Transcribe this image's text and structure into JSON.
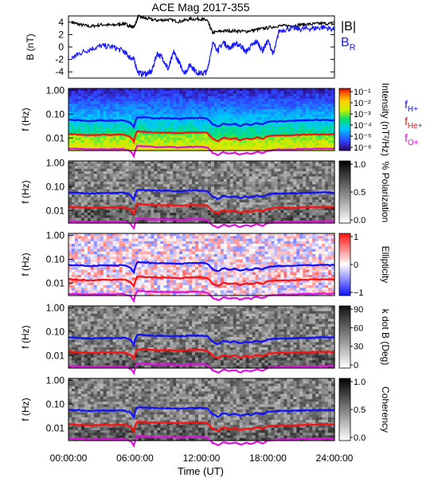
{
  "figure": {
    "title": "ACE Mag 2017-355",
    "xlabel": "Time (UT)",
    "x_ticks": [
      "00:00:00",
      "06:00:00",
      "12:00:00",
      "18:00:00",
      "24:00:00"
    ]
  },
  "colors": {
    "B": "#000000",
    "BR": "#1a1aff",
    "H": "#1010ff",
    "He": "#ff1010",
    "O": "#e010e0"
  },
  "chart_data": [
    {
      "type": "line",
      "title": "ACE Mag 2017-355",
      "ylabel": "B (nT)",
      "ylim": [
        -5,
        5
      ],
      "y_ticks": [
        "4",
        "2",
        "0",
        "-2",
        "-4"
      ],
      "xlim_hours": [
        0,
        24
      ],
      "legend": [
        "|B|",
        "B_R"
      ],
      "series": [
        {
          "name": "|B|",
          "color": "#000000",
          "x": [
            0.3,
            1,
            2,
            3,
            4,
            5,
            5.5,
            5.9,
            6.3,
            7,
            8,
            9,
            10,
            11,
            12,
            12.5,
            13,
            14,
            15,
            16,
            17,
            18,
            19,
            20,
            21,
            22,
            23,
            24
          ],
          "values": [
            4.0,
            3.6,
            3.3,
            3.6,
            3.5,
            3.8,
            3.4,
            3.2,
            4.9,
            4.6,
            4.3,
            4.4,
            4.1,
            4.5,
            4.5,
            4.3,
            2.3,
            2.6,
            2.6,
            2.5,
            2.8,
            3.1,
            3.4,
            3.4,
            3.6,
            3.7,
            3.8,
            3.7
          ]
        },
        {
          "name": "B_R",
          "color": "#1a1aff",
          "x": [
            0.3,
            1,
            2,
            3,
            4,
            5,
            5.5,
            5.9,
            6.3,
            7,
            7.5,
            8,
            8.5,
            9,
            9.5,
            10,
            10.5,
            11,
            11.5,
            12,
            12.5,
            13,
            13.5,
            14,
            14.5,
            15,
            15.5,
            16,
            16.5,
            17,
            17.5,
            18,
            18.5,
            19,
            20,
            21,
            22,
            23,
            24
          ],
          "values": [
            -1.8,
            -1.0,
            -0.3,
            0.2,
            0.0,
            -0.7,
            -1.6,
            -2.0,
            -4.2,
            -4.3,
            -4.0,
            -1.0,
            -1.8,
            -3.6,
            -0.8,
            -2.6,
            -4.2,
            -2.8,
            -4.0,
            -4.3,
            -4.0,
            0.6,
            -0.5,
            0.8,
            -0.2,
            0.5,
            0.3,
            -0.8,
            0.2,
            0.9,
            -0.6,
            1.0,
            -1.2,
            2.6,
            3.0,
            2.9,
            3.0,
            3.2,
            2.8
          ]
        }
      ]
    },
    {
      "type": "heatmap",
      "ylabel": "f (Hz)",
      "y_ticks": [
        "1.00",
        "0.10",
        "0.01"
      ],
      "colorbar_label": "Intensity (nT²/Hz)",
      "colorbar_ticks": [
        "10⁻¹",
        "10⁻²",
        "10⁻³",
        "10⁻⁴",
        "10⁻⁵",
        "10⁻⁶"
      ],
      "legend": [
        "f_H+",
        "f_He+",
        "f_O+"
      ]
    },
    {
      "type": "heatmap",
      "ylabel": "f (Hz)",
      "y_ticks": [
        "1.00",
        "0.10",
        "0.01"
      ],
      "colorbar_label": "% Polarization",
      "colorbar_ticks": [
        "1.0",
        "0.5",
        "0.0"
      ]
    },
    {
      "type": "heatmap",
      "ylabel": "f (Hz)",
      "y_ticks": [
        "1.00",
        "0.10",
        "0.01"
      ],
      "colorbar_label": "Ellipticity",
      "colorbar_ticks": [
        "1",
        "0",
        "−1"
      ]
    },
    {
      "type": "heatmap",
      "ylabel": "f (Hz)",
      "y_ticks": [
        "1.00",
        "0.10",
        "0.01"
      ],
      "colorbar_label": "k dot B (Deg)",
      "colorbar_ticks": [
        "90",
        "60",
        "30",
        "0"
      ]
    },
    {
      "type": "heatmap",
      "ylabel": "f (Hz)",
      "y_ticks": [
        "1.00",
        "0.10",
        "0.01"
      ],
      "colorbar_label": "Coherency",
      "colorbar_ticks": [
        "1.0",
        "0.5",
        "0.0"
      ]
    }
  ],
  "gyro_lines": {
    "x": [
      0,
      1,
      2,
      3,
      4,
      5,
      5.6,
      5.9,
      6.2,
      7,
      8,
      9,
      10,
      11,
      12,
      12.5,
      13,
      13.5,
      14,
      14.5,
      15,
      15.5,
      16,
      16.5,
      17,
      17.5,
      18,
      19,
      20,
      21,
      22,
      23,
      24
    ],
    "H": [
      0.058,
      0.055,
      0.052,
      0.055,
      0.054,
      0.056,
      0.045,
      0.028,
      0.075,
      0.072,
      0.067,
      0.068,
      0.064,
      0.069,
      0.069,
      0.066,
      0.038,
      0.03,
      0.042,
      0.036,
      0.04,
      0.032,
      0.039,
      0.035,
      0.043,
      0.037,
      0.048,
      0.052,
      0.052,
      0.055,
      0.056,
      0.058,
      0.057
    ],
    "He": [
      0.0145,
      0.0138,
      0.013,
      0.0138,
      0.0135,
      0.014,
      0.011,
      0.007,
      0.0188,
      0.018,
      0.0168,
      0.017,
      0.016,
      0.0172,
      0.0172,
      0.0165,
      0.0095,
      0.0075,
      0.0105,
      0.009,
      0.01,
      0.008,
      0.0098,
      0.0088,
      0.0108,
      0.0092,
      0.012,
      0.013,
      0.013,
      0.0138,
      0.014,
      0.0145,
      0.0142
    ],
    "O": [
      0.0036,
      0.0035,
      0.0033,
      0.0034,
      0.0034,
      0.0035,
      0.0028,
      0.0018,
      0.0047,
      0.0045,
      0.0042,
      0.0043,
      0.004,
      0.0043,
      0.0043,
      0.0041,
      0.0024,
      0.0019,
      0.0026,
      0.0022,
      0.0025,
      0.002,
      0.0024,
      0.0022,
      0.0027,
      0.0023,
      0.003,
      0.0033,
      0.0033,
      0.0035,
      0.0035,
      0.0036,
      0.0036
    ]
  },
  "freq_range_hz": [
    0.003,
    1.2
  ]
}
